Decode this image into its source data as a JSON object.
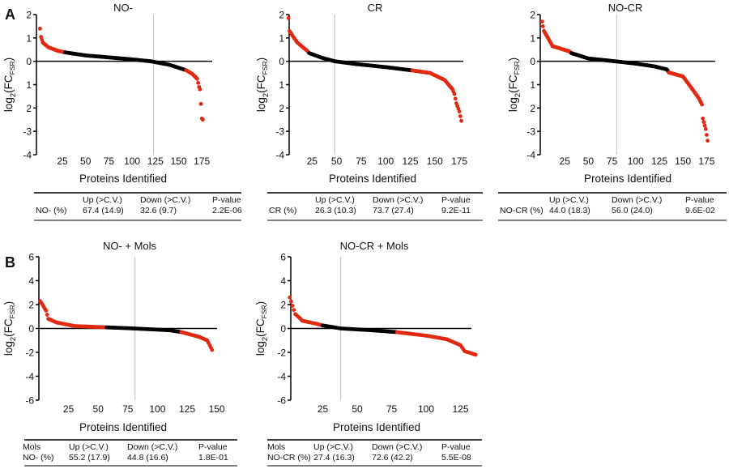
{
  "figure": {
    "panel_labels": [
      "A",
      "B"
    ]
  },
  "colors": {
    "significant": "#e2280f",
    "not_significant": "#000000",
    "reference_line": "#c8c8c8",
    "axis": "#000000"
  },
  "chart_data": [
    {
      "type": "scatter",
      "panel": "A",
      "title": "NO-",
      "xlabel": "Proteins Identified",
      "ylabel": {
        "base": "log",
        "sub1": "2",
        "mid": "(FC",
        "sub2": "FSR",
        "end": ")"
      },
      "xlim": [
        0,
        185
      ],
      "ylim": [
        -4,
        2
      ],
      "xticks": [
        25,
        50,
        75,
        100,
        125,
        150,
        175
      ],
      "yticks": [
        2,
        1,
        0,
        -1,
        -2,
        -3,
        -4
      ],
      "ytick_labels": [
        "2",
        "1",
        "0",
        "1",
        "2",
        "-3",
        "-4"
      ],
      "n_proteins": 176,
      "reference_line_x": 123,
      "up_significant_through_rank": 27,
      "down_significant_from_rank": 158,
      "curve": [
        [
          1,
          1.4
        ],
        [
          2,
          1.05
        ],
        [
          4,
          0.8
        ],
        [
          10,
          0.6
        ],
        [
          20,
          0.45
        ],
        [
          28,
          0.38
        ],
        [
          50,
          0.25
        ],
        [
          80,
          0.15
        ],
        [
          100,
          0.08
        ],
        [
          120,
          0.0
        ],
        [
          140,
          -0.15
        ],
        [
          158,
          -0.38
        ],
        [
          165,
          -0.55
        ],
        [
          170,
          -0.75
        ],
        [
          172,
          -1.1
        ],
        [
          173,
          -1.2
        ],
        [
          175,
          -2.45
        ],
        [
          176,
          -2.5
        ]
      ],
      "table": {
        "header_label": "",
        "columns": [
          "Up (>C.V.)",
          "Down (>C.V.)",
          "P-value"
        ],
        "row": [
          "NO- (%)",
          "67.4 (14.9)",
          "32.6 (9.7)",
          "2.2E-06"
        ]
      }
    },
    {
      "type": "scatter",
      "panel": "A",
      "title": "CR",
      "xlabel": "Proteins Identified",
      "ylabel": {
        "base": "log",
        "sub1": "2",
        "mid": "(FC",
        "sub2": "FSR",
        "end": ")"
      },
      "xlim": [
        0,
        185
      ],
      "ylim": [
        -4,
        2
      ],
      "xticks": [
        25,
        50,
        75,
        100,
        125,
        150,
        175
      ],
      "yticks": [
        2,
        1,
        0,
        -1,
        -2,
        -3,
        -4
      ],
      "ytick_labels": [
        "2",
        "1",
        "0",
        "1",
        "2",
        "-3",
        "-4"
      ],
      "n_proteins": 177,
      "reference_line_x": 48,
      "up_significant_through_rank": 21,
      "down_significant_from_rank": 127,
      "curve": [
        [
          1,
          1.85
        ],
        [
          2,
          1.3
        ],
        [
          5,
          1.1
        ],
        [
          10,
          0.8
        ],
        [
          20,
          0.45
        ],
        [
          22,
          0.35
        ],
        [
          35,
          0.15
        ],
        [
          48,
          0.0
        ],
        [
          70,
          -0.12
        ],
        [
          100,
          -0.25
        ],
        [
          125,
          -0.38
        ],
        [
          145,
          -0.5
        ],
        [
          160,
          -0.8
        ],
        [
          168,
          -1.2
        ],
        [
          170,
          -1.4
        ],
        [
          172,
          -1.8
        ],
        [
          175,
          -2.15
        ],
        [
          177,
          -2.55
        ]
      ],
      "table": {
        "header_label": "",
        "columns": [
          "Up (>C.V.)",
          "Down (>C.V.)",
          "P-value"
        ],
        "row": [
          "CR (%)",
          "26.3 (10.3)",
          "73.7 (27.4)",
          "9.2E-11"
        ]
      }
    },
    {
      "type": "scatter",
      "panel": "A",
      "title": "NO-CR",
      "xlabel": "Proteins Identified",
      "ylabel": {
        "base": "log",
        "sub1": "2",
        "mid": "(FC",
        "sub2": "FSR",
        "end": ")"
      },
      "xlim": [
        0,
        185
      ],
      "ylim": [
        -4,
        2
      ],
      "xticks": [
        25,
        50,
        75,
        100,
        125,
        150,
        175
      ],
      "yticks": [
        2,
        1,
        0,
        -1,
        -2,
        -3,
        -4
      ],
      "ytick_labels": [
        "2",
        "1",
        "0",
        "1",
        "2",
        "-3",
        "-4"
      ],
      "n_proteins": 176,
      "reference_line_x": 80,
      "up_significant_through_rank": 31,
      "down_significant_from_rank": 135,
      "curve": [
        [
          1,
          1.7
        ],
        [
          3,
          1.3
        ],
        [
          8,
          0.95
        ],
        [
          12,
          0.65
        ],
        [
          20,
          0.55
        ],
        [
          30,
          0.42
        ],
        [
          32,
          0.35
        ],
        [
          50,
          0.12
        ],
        [
          78,
          0.0
        ],
        [
          100,
          -0.1
        ],
        [
          120,
          -0.22
        ],
        [
          133,
          -0.35
        ],
        [
          135,
          -0.48
        ],
        [
          150,
          -0.65
        ],
        [
          160,
          -1.2
        ],
        [
          167,
          -1.6
        ],
        [
          170,
          -1.85
        ],
        [
          171,
          -2.45
        ],
        [
          174,
          -2.9
        ],
        [
          176,
          -3.4
        ]
      ],
      "table": {
        "header_label": "",
        "columns": [
          "Up (>C.V.)",
          "Down (>C.V.)",
          "P-value"
        ],
        "row": [
          "NO-CR  (%)",
          "44.0 (18.3)",
          "56.0 (24.0)",
          "9.6E-02"
        ]
      }
    },
    {
      "type": "scatter",
      "panel": "B",
      "title": "NO- + Mols",
      "xlabel": "Proteins Identified",
      "ylabel": {
        "base": "log",
        "sub1": "2",
        "mid": "(FC",
        "sub2": "FSR",
        "end": ")"
      },
      "xlim": [
        0,
        150
      ],
      "ylim": [
        -6,
        6
      ],
      "xticks": [
        25,
        50,
        75,
        100,
        125,
        150
      ],
      "yticks": [
        6,
        4,
        2,
        0,
        -2,
        -4,
        -6
      ],
      "ytick_labels": [
        "6",
        "4",
        "2",
        "0",
        "-2",
        "-4",
        "-6"
      ],
      "n_proteins": 146,
      "reference_line_x": 81,
      "up_significant_through_rank": 56,
      "down_significant_from_rank": 120,
      "curve": [
        [
          1,
          2.3
        ],
        [
          3,
          2.0
        ],
        [
          6,
          1.5
        ],
        [
          8,
          0.8
        ],
        [
          15,
          0.5
        ],
        [
          30,
          0.2
        ],
        [
          55,
          0.1
        ],
        [
          80,
          0.0
        ],
        [
          110,
          -0.15
        ],
        [
          120,
          -0.3
        ],
        [
          135,
          -0.7
        ],
        [
          142,
          -1.0
        ],
        [
          144,
          -1.4
        ],
        [
          146,
          -1.8
        ]
      ],
      "table": {
        "header_label": "Mols",
        "columns": [
          "Up (>C.V.)",
          "Down (>C.V.)",
          "P-value"
        ],
        "row": [
          "NO- (%)",
          "55.2 (17.9)",
          "44.8 (16.6)",
          "1.8E-01"
        ]
      }
    },
    {
      "type": "scatter",
      "panel": "B",
      "title": "NO-CR + Mols",
      "xlabel": "Proteins Identified",
      "ylabel": {
        "base": "log",
        "sub1": "2",
        "mid": "(FC",
        "sub2": "FSR",
        "end": ")"
      },
      "xlim": [
        0,
        140
      ],
      "ylim": [
        -6,
        6
      ],
      "xticks": [
        25,
        50,
        75,
        100,
        125
      ],
      "yticks": [
        6,
        4,
        2,
        0,
        -2,
        -4,
        -6
      ],
      "ytick_labels": [
        "6",
        "4",
        "2",
        "0",
        "-2",
        "-4",
        "-6"
      ],
      "n_proteins": 136,
      "reference_line_x": 38,
      "up_significant_through_rank": 24,
      "down_significant_from_rank": 79,
      "curve": [
        [
          1,
          2.6
        ],
        [
          3,
          1.9
        ],
        [
          5,
          1.2
        ],
        [
          8,
          0.9
        ],
        [
          10,
          0.65
        ],
        [
          20,
          0.4
        ],
        [
          25,
          0.25
        ],
        [
          38,
          0.0
        ],
        [
          60,
          -0.15
        ],
        [
          78,
          -0.3
        ],
        [
          100,
          -0.6
        ],
        [
          115,
          -0.9
        ],
        [
          125,
          -1.4
        ],
        [
          128,
          -1.9
        ],
        [
          136,
          -2.2
        ]
      ],
      "table": {
        "header_label": "Mols",
        "columns": [
          "Up (>C.V.)",
          "Down (>C.V.)",
          "P-value"
        ],
        "row": [
          "NO-CR (%)",
          "27.4 (16.3)",
          "72.6 (42.2)",
          "5.5E-08"
        ]
      }
    }
  ]
}
